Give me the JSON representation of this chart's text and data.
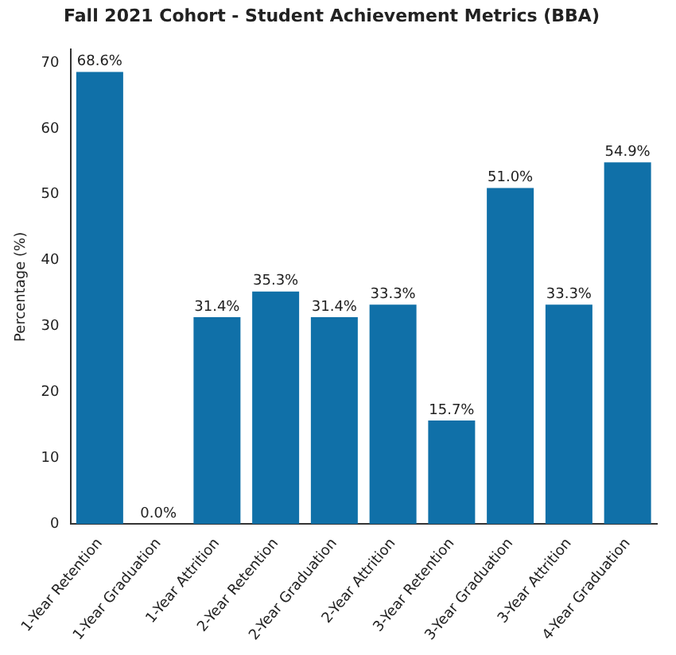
{
  "chart_data": {
    "type": "bar",
    "title": "Fall 2021 Cohort - Student Achievement Metrics (BBA)",
    "ylabel": "Percentage (%)",
    "categories": [
      "1-Year Retention",
      "1-Year Graduation",
      "1-Year Attrition",
      "2-Year Retention",
      "2-Year Graduation",
      "2-Year Attrition",
      "3-Year Retention",
      "3-Year Graduation",
      "3-Year Attrition",
      "4-Year Graduation"
    ],
    "values": [
      68.6,
      0.0,
      31.4,
      35.3,
      31.4,
      33.3,
      15.7,
      51.0,
      33.3,
      54.9
    ],
    "value_labels": [
      "68.6%",
      "0.0%",
      "31.4%",
      "35.3%",
      "31.4%",
      "33.3%",
      "15.7%",
      "51.0%",
      "33.3%",
      "54.9%"
    ],
    "color": "#1070a8",
    "ylim": [
      0,
      72
    ],
    "yticks": [
      0,
      10,
      20,
      30,
      40,
      50,
      60,
      70
    ],
    "grid": false,
    "legend": false
  }
}
